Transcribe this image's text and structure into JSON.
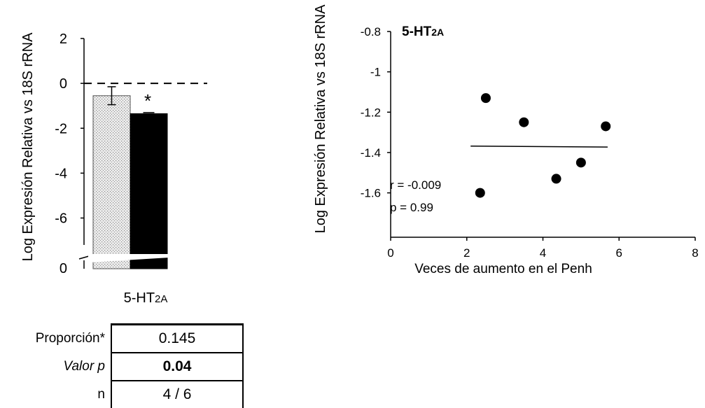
{
  "bar_chart": {
    "ylabel": "Log Expresión Relativa vs 18S rRNA",
    "xlabel_main": "5-HT",
    "xlabel_sub": "2A",
    "significance": "*",
    "zero_tick_label": "0"
  },
  "scatter_chart": {
    "title_main": "5-HT",
    "title_sub": "2A",
    "ylabel": "Log Expresión Relativa vs 18S rRNA",
    "xlabel": "Veces de aumento en el Penh",
    "r_text": "r = -0.009",
    "p_text": "p = 0.99"
  },
  "stats_table": {
    "rows": [
      {
        "label": "Proporción*",
        "value": "0.145"
      },
      {
        "label": "Valor p",
        "value": "0.04"
      },
      {
        "label": "n",
        "value": "4 / 6"
      }
    ]
  },
  "colors": {
    "control_bar": "#e4e4e4",
    "treated_bar": "#000000",
    "points": "#000000"
  },
  "chart_data": [
    {
      "type": "bar",
      "categories": [
        "5-HT2A"
      ],
      "series": [
        {
          "values": [
            -0.55
          ],
          "error": [
            0.4
          ],
          "pattern": "dotted-light"
        },
        {
          "values": [
            -1.35
          ],
          "error": [
            0.05
          ],
          "pattern": "solid-black"
        }
      ],
      "yticks": [
        2,
        0,
        -2,
        -4,
        -6
      ],
      "ylim": [
        -7.2,
        2
      ],
      "broken_axis": true,
      "reference_line": 0
    },
    {
      "type": "scatter",
      "points": [
        {
          "x": 2.5,
          "y": -1.13
        },
        {
          "x": 3.5,
          "y": -1.25
        },
        {
          "x": 5.65,
          "y": -1.27
        },
        {
          "x": 5.0,
          "y": -1.45
        },
        {
          "x": 4.35,
          "y": -1.53
        },
        {
          "x": 2.35,
          "y": -1.6
        }
      ],
      "trendline": {
        "x": [
          2.1,
          5.7
        ],
        "y": [
          -1.368,
          -1.373
        ]
      },
      "xticks": [
        0,
        2,
        4,
        6,
        8
      ],
      "yticks": [
        -0.8,
        -1,
        -1.2,
        -1.4,
        -1.6
      ],
      "xlim": [
        0,
        8
      ],
      "ylim": [
        -1.82,
        -0.8
      ]
    }
  ]
}
